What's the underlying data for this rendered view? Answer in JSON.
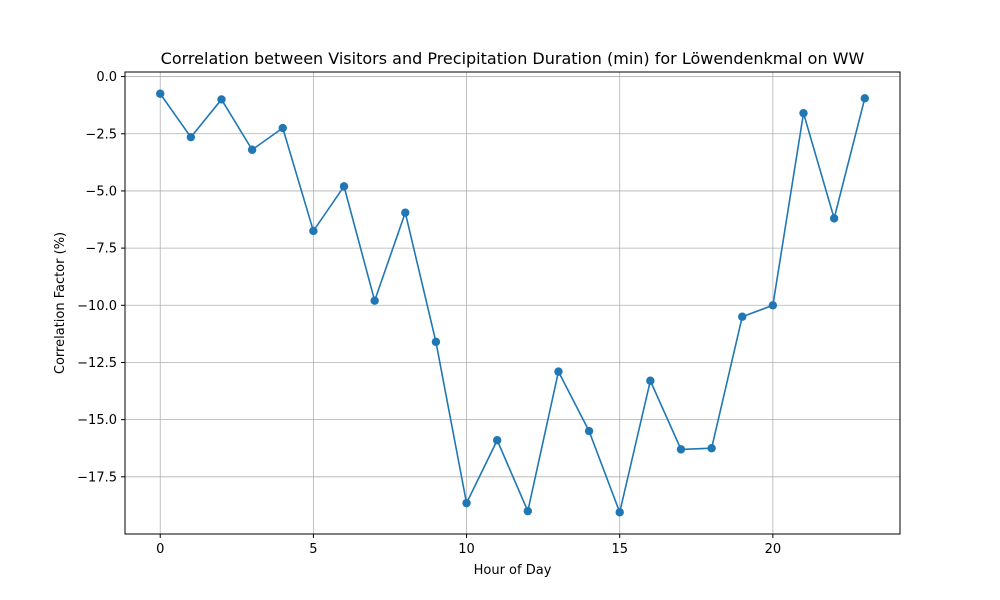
{
  "chart_data": {
    "type": "line",
    "title": "Correlation between Visitors and Precipitation Duration (min) for Löwendenkmal on WW",
    "xlabel": "Hour of Day",
    "ylabel": "Correlation Factor (%)",
    "x": [
      0,
      1,
      2,
      3,
      4,
      5,
      6,
      7,
      8,
      9,
      10,
      11,
      12,
      13,
      14,
      15,
      16,
      17,
      18,
      19,
      20,
      21,
      22,
      23
    ],
    "series": [
      {
        "name": "",
        "color": "#1f77b4",
        "values": [
          -0.75,
          -2.65,
          -1.0,
          -3.2,
          -2.25,
          -6.75,
          -4.8,
          -9.8,
          -5.95,
          -11.6,
          -18.65,
          -15.9,
          -19.0,
          -12.9,
          -15.5,
          -19.05,
          -13.3,
          -16.3,
          -16.25,
          -10.5,
          -10.0,
          -1.6,
          -6.2,
          -0.95
        ]
      }
    ],
    "xlim": [
      -1.15,
      24.15
    ],
    "ylim": [
      -20.0,
      0.2
    ],
    "xticks": [
      0,
      5,
      10,
      15,
      20
    ],
    "xtick_labels": [
      "0",
      "5",
      "10",
      "15",
      "20"
    ],
    "yticks": [
      0.0,
      -2.5,
      -5.0,
      -7.5,
      -10.0,
      -12.5,
      -15.0,
      -17.5
    ],
    "ytick_labels": [
      "0.0",
      "−2.5",
      "−5.0",
      "−7.5",
      "−10.0",
      "−12.5",
      "−15.0",
      "−17.5"
    ],
    "grid": true,
    "marker": "circle"
  }
}
